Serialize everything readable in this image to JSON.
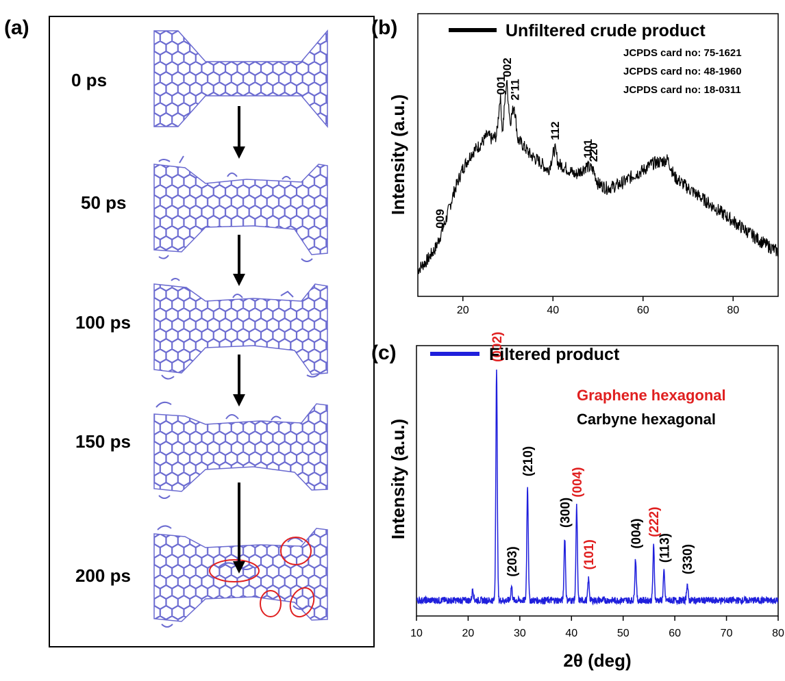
{
  "panel_a": {
    "tag": "(a)",
    "time_labels": [
      "0 ps",
      "50 ps",
      "100 ps",
      "150 ps",
      "200 ps"
    ],
    "colors": {
      "lattice": "#6a6ad0",
      "circles": "#e02020",
      "arrow": "#000000"
    }
  },
  "panel_b": {
    "tag": "(b)"
  },
  "panel_c": {
    "tag": "(c)"
  },
  "chart_data": [
    {
      "type": "line",
      "panel": "b",
      "title": "",
      "xlabel": "",
      "ylabel": "Intensity (a.u.)",
      "xlim": [
        10,
        90
      ],
      "xticks": [
        20,
        40,
        60,
        80
      ],
      "legend_position": "top-left",
      "series": [
        {
          "name": "Unfiltered crude product",
          "color": "#000000",
          "x": [
            10,
            12,
            14,
            16,
            18,
            20,
            22,
            24,
            25.5,
            26.5,
            27.5,
            28.3,
            28.8,
            29.7,
            30.5,
            31.4,
            32.2,
            33.5,
            35,
            37,
            39,
            40.4,
            41.2,
            43,
            45,
            47.5,
            49,
            50,
            52,
            54,
            56,
            58,
            60,
            62,
            64,
            65.5,
            67,
            70,
            74,
            78,
            82,
            86,
            90
          ],
          "y": [
            5,
            9,
            15,
            26,
            40,
            51,
            58,
            62,
            66,
            64,
            66,
            84,
            67,
            91,
            72,
            80,
            64,
            61,
            57,
            54,
            50,
            60,
            53,
            51,
            48,
            52,
            50,
            44,
            42,
            43,
            45,
            48,
            50,
            53,
            54,
            55,
            47,
            42,
            36,
            30,
            24,
            18,
            13
          ]
        }
      ],
      "peaks": [
        {
          "x": 14.9,
          "label": "009"
        },
        {
          "x": 28.4,
          "label": "001"
        },
        {
          "x": 29.8,
          "label": "002"
        },
        {
          "x": 31.5,
          "label": "2'11"
        },
        {
          "x": 40.4,
          "label": "112"
        },
        {
          "x": 47.7,
          "label": "101"
        },
        {
          "x": 48.9,
          "label": "220"
        }
      ],
      "annotations": [
        "JCPDS card no: 75-1621",
        "JCPDS card no: 48-1960",
        "JCPDS card no: 18-0311"
      ]
    },
    {
      "type": "line",
      "panel": "c",
      "title": "",
      "xlabel": "2θ (deg)",
      "ylabel": "Intensity (a.u.)",
      "xlim": [
        10,
        80
      ],
      "xticks": [
        10,
        20,
        30,
        40,
        50,
        60,
        70,
        80
      ],
      "legend_position": "top-left",
      "series": [
        {
          "name": "Filtered product",
          "color": "#1f1fdc",
          "x": [
            10,
            20.9,
            25.5,
            28.4,
            31.5,
            38.7,
            41.0,
            43.3,
            52.4,
            55.9,
            57.9,
            62.4,
            80
          ],
          "y": [
            2,
            7,
            100,
            8,
            51,
            29,
            42,
            11,
            20,
            25,
            14,
            9,
            2
          ]
        }
      ],
      "peaks": [
        {
          "x": 25.5,
          "label": "(002)",
          "category": "graphene"
        },
        {
          "x": 28.4,
          "label": "(203)",
          "category": "carbyne"
        },
        {
          "x": 31.5,
          "label": "(210)",
          "category": "carbyne"
        },
        {
          "x": 38.7,
          "label": "(300)",
          "category": "carbyne"
        },
        {
          "x": 41.0,
          "label": "(004)",
          "category": "graphene"
        },
        {
          "x": 43.3,
          "label": "(101)",
          "category": "graphene"
        },
        {
          "x": 52.4,
          "label": "(004)",
          "category": "carbyne"
        },
        {
          "x": 55.9,
          "label": "(222)",
          "category": "graphene"
        },
        {
          "x": 57.9,
          "label": "(113)",
          "category": "carbyne"
        },
        {
          "x": 62.4,
          "label": "(330)",
          "category": "carbyne"
        }
      ],
      "categories_legend": [
        {
          "key": "graphene",
          "text": "Graphene hexagonal",
          "color": "#e02020"
        },
        {
          "key": "carbyne",
          "text": "Carbyne hexagonal",
          "color": "#000000"
        }
      ]
    }
  ]
}
